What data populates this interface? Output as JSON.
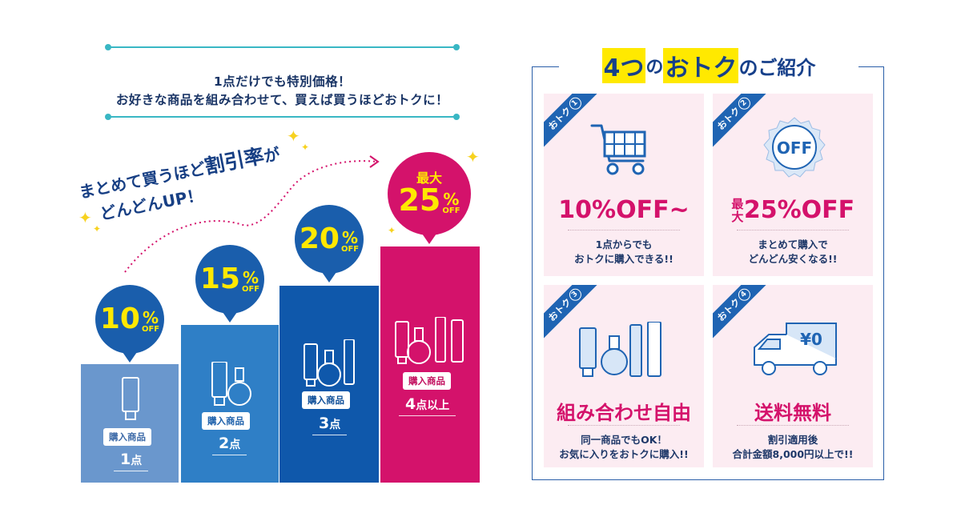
{
  "intro": {
    "line1": "1点だけでも特別価格！",
    "line2": "お好きな商品を組み合わせて、買えば買うほどおトクに！"
  },
  "slogan": {
    "line1_a": "まとめて買うほど",
    "line1_b": "割引率",
    "line1_c": "が",
    "line2": "どんどんUP！"
  },
  "steps": [
    {
      "discount": "10",
      "pct": "%",
      "off": "OFF",
      "tag": "購入商品",
      "count": "1",
      "unit": "点",
      "color": "#6a97cd",
      "bubble_color": "#1a5eac"
    },
    {
      "discount": "15",
      "pct": "%",
      "off": "OFF",
      "tag": "購入商品",
      "count": "2",
      "unit": "点",
      "color": "#2f7fc6",
      "bubble_color": "#1a5eac"
    },
    {
      "discount": "20",
      "pct": "%",
      "off": "OFF",
      "tag": "購入商品",
      "count": "3",
      "unit": "点",
      "color": "#0f58ab",
      "bubble_color": "#1a5eac"
    },
    {
      "prefix": "最大",
      "discount": "25",
      "pct": "%",
      "off": "OFF",
      "tag": "購入商品",
      "count": "4",
      "unit": "点以上",
      "color": "#d4126b",
      "bubble_color": "#d4126b"
    }
  ],
  "benefits": {
    "heading_a": "4つ",
    "heading_b": "の",
    "heading_c": "おトク",
    "heading_d": "のご紹介",
    "cards": [
      {
        "corner": "おトク",
        "num": "1",
        "icon": "shopping-cart-icon",
        "title": "10%OFF~",
        "desc1": "1点からでも",
        "desc2": "おトクに購入できる!!"
      },
      {
        "corner": "おトク",
        "num": "2",
        "icon": "off-badge-icon",
        "badge": "OFF",
        "title_prefix": "最大",
        "title": "25%OFF",
        "desc1": "まとめて購入で",
        "desc2": "どんどん安くなる!!"
      },
      {
        "corner": "おトク",
        "num": "3",
        "icon": "cosmetics-icon",
        "title": "組み合わせ自由",
        "desc1": "同一商品でもOK！",
        "desc2": "お気に入りをおトクに購入!!"
      },
      {
        "corner": "おトク",
        "num": "4",
        "icon": "delivery-truck-icon",
        "truck_label": "¥0",
        "title": "送料無料",
        "desc1": "割引適用後",
        "desc2": "合計金額8,000円以上で!!"
      }
    ]
  },
  "colors": {
    "navy": "#17408a",
    "pink": "#d4126b",
    "yellow": "#ffe900",
    "teal": "#39b7c4"
  }
}
